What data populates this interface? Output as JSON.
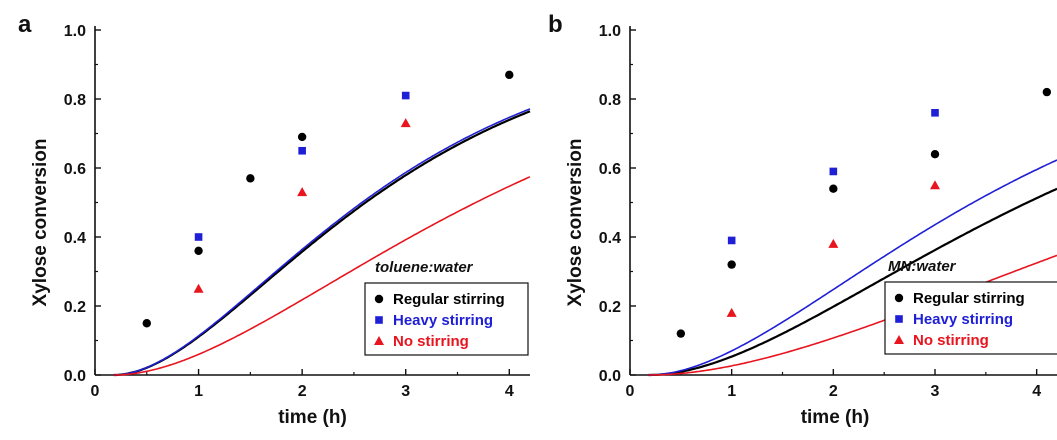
{
  "chart_data": [
    {
      "type": "scatter",
      "panel_label": "a",
      "annotation": "toluene:water",
      "xlabel": "time (h)",
      "ylabel": "Xylose conversion",
      "xlim": [
        0,
        4.2
      ],
      "ylim": [
        0,
        1.0
      ],
      "x_ticks": [
        "0",
        "1",
        "2",
        "3",
        "4"
      ],
      "y_ticks": [
        "0.0",
        "0.2",
        "0.4",
        "0.6",
        "0.8",
        "1.0"
      ],
      "legend_position": "bottom-right",
      "series": [
        {
          "name": "Regular stirring",
          "color": "#000000",
          "marker": "circle",
          "points": [
            [
              0.5,
              0.15
            ],
            [
              1,
              0.36
            ],
            [
              1.5,
              0.57
            ],
            [
              2,
              0.69
            ],
            [
              4,
              0.87
            ]
          ],
          "fit": {
            "k": 0.69,
            "t0": 0.18
          }
        },
        {
          "name": "Heavy stirring",
          "color": "#1f1fd6",
          "marker": "square",
          "points": [
            [
              1,
              0.4
            ],
            [
              2,
              0.65
            ],
            [
              3,
              0.81
            ]
          ],
          "fit": {
            "k": 0.7,
            "t0": 0.18
          }
        },
        {
          "name": "No stirring",
          "color": "#e8141e",
          "marker": "triangle",
          "points": [
            [
              1,
              0.25
            ],
            [
              2,
              0.53
            ],
            [
              3,
              0.73
            ]
          ],
          "fit": {
            "k": 0.48,
            "t0": 0.18
          }
        }
      ]
    },
    {
      "type": "scatter",
      "panel_label": "b",
      "annotation": "MN:water",
      "xlabel": "time (h)",
      "ylabel": "Xylose conversion",
      "xlim": [
        0,
        4.2
      ],
      "ylim": [
        0,
        1.0
      ],
      "x_ticks": [
        "0",
        "1",
        "2",
        "3",
        "4"
      ],
      "y_ticks": [
        "0.0",
        "0.2",
        "0.4",
        "0.6",
        "0.8",
        "1.0"
      ],
      "legend_position": "bottom-right",
      "series": [
        {
          "name": "Regular stirring",
          "color": "#000000",
          "marker": "circle",
          "points": [
            [
              0.5,
              0.12
            ],
            [
              1,
              0.32
            ],
            [
              2,
              0.54
            ],
            [
              3,
              0.64
            ],
            [
              4.1,
              0.82
            ]
          ],
          "fit": {
            "k": 0.45,
            "t0": 0.18
          }
        },
        {
          "name": "Heavy stirring",
          "color": "#1f1fd6",
          "marker": "square",
          "points": [
            [
              1,
              0.39
            ],
            [
              2,
              0.59
            ],
            [
              3,
              0.76
            ]
          ],
          "fit": {
            "k": 0.525,
            "t0": 0.18
          }
        },
        {
          "name": "No stirring",
          "color": "#e8141e",
          "marker": "triangle",
          "points": [
            [
              1,
              0.18
            ],
            [
              2,
              0.38
            ],
            [
              3,
              0.55
            ]
          ],
          "fit": {
            "k": 0.305,
            "t0": 0.18
          }
        }
      ]
    }
  ]
}
